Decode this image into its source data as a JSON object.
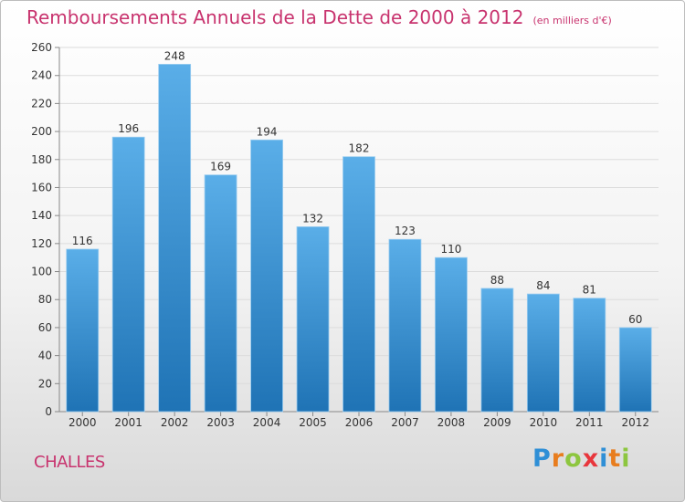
{
  "title": "Remboursements Annuels de la Dette de 2000 à 2012",
  "subtitle": "(en milliers d'€)",
  "town": "CHALLES",
  "logo": {
    "letters": [
      "P",
      "r",
      "o",
      "x",
      "i",
      "t",
      "i"
    ],
    "colors": [
      "#2f8fd6",
      "#e87d1e",
      "#8dc63f",
      "#e8363c",
      "#2f8fd6",
      "#e87d1e",
      "#8dc63f"
    ]
  },
  "colors": {
    "bar_top": "#5aaee8",
    "bar_bottom": "#1f73b5",
    "title": "#c8336e",
    "grid": "#dcdcdc"
  },
  "chart_data": {
    "type": "bar",
    "title": "Remboursements Annuels de la Dette de 2000 à 2012",
    "subtitle": "(en milliers d'€)",
    "categories": [
      "2000",
      "2001",
      "2002",
      "2003",
      "2004",
      "2005",
      "2006",
      "2007",
      "2008",
      "2009",
      "2010",
      "2011",
      "2012"
    ],
    "values": [
      116,
      196,
      248,
      169,
      194,
      132,
      182,
      123,
      110,
      88,
      84,
      81,
      60
    ],
    "ylim": [
      0,
      260
    ],
    "yticks": [
      0,
      20,
      40,
      60,
      80,
      100,
      120,
      140,
      160,
      180,
      200,
      220,
      240,
      260
    ],
    "grid": true,
    "data_labels": true
  }
}
